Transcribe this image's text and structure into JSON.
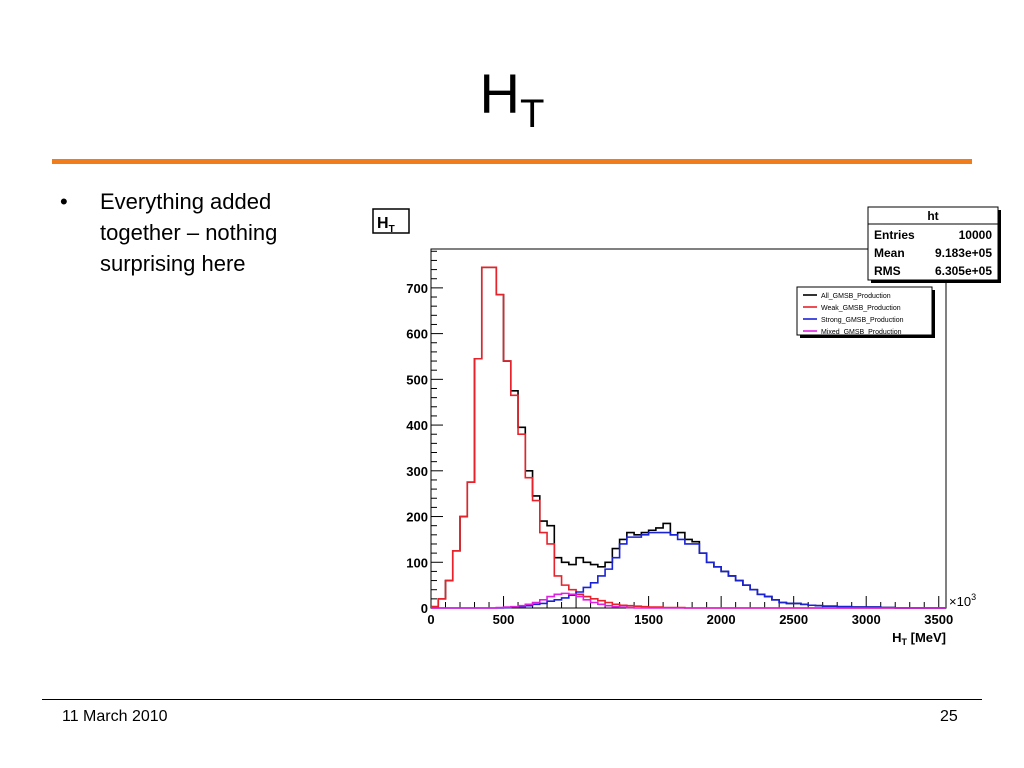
{
  "slide": {
    "title_main": "H",
    "title_sub": "T",
    "bullet_marker": "•",
    "bullets": [
      "Everything added together – nothing surprising here"
    ],
    "footer_date": "11 March 2010",
    "page_number": "25",
    "accent_color": "#f07c1c"
  },
  "chart_data": {
    "type": "histogram",
    "title_main": "H",
    "title_sub": "T",
    "xlabel_main": "H",
    "xlabel_sub": "T",
    "xlabel_unit": " [MeV]",
    "x_multiplier_base": "×10",
    "x_multiplier_exp": "3",
    "xlim": [
      0,
      3550
    ],
    "ylim": [
      0,
      785
    ],
    "x_ticks": [
      0,
      500,
      1000,
      1500,
      2000,
      2500,
      3000,
      3500
    ],
    "y_ticks": [
      0,
      100,
      200,
      300,
      400,
      500,
      600,
      700
    ],
    "bin_width": 50,
    "grid": false,
    "stats_box": {
      "name": "ht",
      "rows": [
        {
          "label": "Entries",
          "value": "10000"
        },
        {
          "label": "Mean",
          "value": "9.183e+05"
        },
        {
          "label": "RMS",
          "value": "6.305e+05"
        }
      ]
    },
    "legend_position": "top-right",
    "series": [
      {
        "name": "All_GMSB_Production",
        "color": "#000000",
        "values": [
          3,
          20,
          60,
          125,
          200,
          275,
          545,
          745,
          745,
          685,
          540,
          475,
          395,
          300,
          245,
          190,
          180,
          110,
          100,
          95,
          110,
          100,
          95,
          90,
          100,
          130,
          150,
          165,
          160,
          165,
          170,
          175,
          185,
          160,
          165,
          150,
          145,
          120,
          100,
          90,
          80,
          70,
          60,
          50,
          40,
          30,
          25,
          18,
          12,
          10,
          10,
          8,
          6,
          5,
          4,
          4,
          3,
          3,
          2,
          2,
          2,
          2,
          1,
          1,
          0,
          0,
          0,
          0,
          0,
          0,
          0
        ]
      },
      {
        "name": "Weak_GMSB_Production",
        "color": "#e8222a",
        "values": [
          3,
          20,
          60,
          125,
          200,
          275,
          545,
          745,
          745,
          685,
          540,
          465,
          380,
          285,
          235,
          165,
          140,
          70,
          50,
          40,
          30,
          25,
          20,
          16,
          12,
          8,
          6,
          5,
          4,
          3,
          2,
          2,
          1,
          1,
          1,
          0,
          0,
          0,
          0,
          0,
          0,
          0,
          0,
          0,
          0,
          0,
          0,
          0,
          0,
          0,
          0,
          0,
          0,
          0,
          0,
          0,
          0,
          0,
          0,
          0,
          0,
          0,
          0,
          0,
          0,
          0,
          0,
          0,
          0,
          0,
          0
        ]
      },
      {
        "name": "Strong_GMSB_Production",
        "color": "#1a22d6",
        "values": [
          0,
          0,
          0,
          0,
          0,
          0,
          0,
          0,
          0,
          0,
          1,
          2,
          3,
          5,
          8,
          10,
          15,
          18,
          22,
          28,
          35,
          45,
          55,
          70,
          85,
          110,
          140,
          155,
          155,
          160,
          165,
          165,
          165,
          160,
          150,
          140,
          140,
          120,
          100,
          90,
          80,
          70,
          60,
          50,
          40,
          30,
          25,
          18,
          12,
          10,
          10,
          8,
          6,
          5,
          4,
          4,
          3,
          3,
          2,
          2,
          2,
          2,
          1,
          1,
          0,
          0,
          0,
          0,
          0,
          0,
          0
        ]
      },
      {
        "name": "Mixed_GMSB_Production",
        "color": "#e020e0",
        "values": [
          0,
          0,
          0,
          0,
          0,
          0,
          0,
          0,
          0,
          1,
          2,
          3,
          5,
          8,
          12,
          18,
          25,
          30,
          32,
          30,
          25,
          18,
          12,
          8,
          5,
          3,
          2,
          1,
          0,
          0,
          0,
          0,
          0,
          0,
          0,
          0,
          0,
          0,
          0,
          0,
          0,
          0,
          0,
          0,
          0,
          0,
          0,
          0,
          0,
          0,
          0,
          0,
          0,
          0,
          0,
          0,
          0,
          0,
          0,
          0,
          0,
          0,
          0,
          0,
          0,
          0,
          0,
          0,
          0,
          0,
          0
        ]
      }
    ]
  }
}
